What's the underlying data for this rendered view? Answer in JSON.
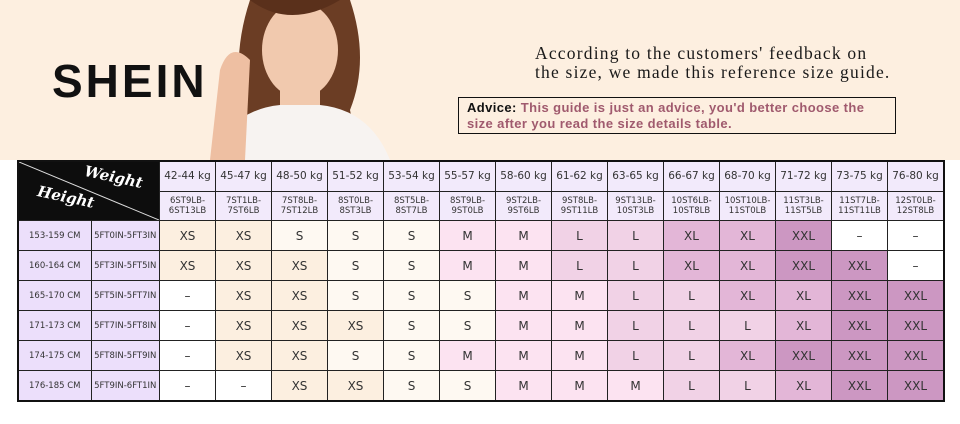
{
  "brand": "SHEIN",
  "intro": [
    "According to the customers' feedback on",
    "the size, we made this reference size guide."
  ],
  "advice": {
    "label": "Advice:",
    "text": "This guide is just an advice, you'd better choose the size after you read the size details table."
  },
  "table": {
    "corner": {
      "weight": "Weight",
      "height": "Height"
    },
    "weights_kg": [
      "42-44 kg",
      "45-47 kg",
      "48-50 kg",
      "51-52 kg",
      "53-54 kg",
      "55-57 kg",
      "58-60 kg",
      "61-62 kg",
      "63-65 kg",
      "66-67 kg",
      "68-70 kg",
      "71-72 kg",
      "73-75 kg",
      "76-80 kg"
    ],
    "weights_st": [
      "6ST9LB-6ST13LB",
      "7ST1LB-7ST6LB",
      "7ST8LB-7ST12LB",
      "8ST0LB-8ST3LB",
      "8ST5LB-8ST7LB",
      "8ST9LB-9ST0LB",
      "9ST2LB-9ST6LB",
      "9ST8LB-9ST11LB",
      "9ST13LB-10ST3LB",
      "10ST6LB-10ST8LB",
      "10ST10LB-11ST0LB",
      "11ST3LB-11ST5LB",
      "11ST7LB-11ST11LB",
      "12ST0LB-12ST8LB"
    ],
    "rows": [
      {
        "cm": "153-159 CM",
        "ft": "5FT0IN-5FT3IN",
        "sizes": [
          "XS",
          "XS",
          "S",
          "S",
          "S",
          "M",
          "M",
          "L",
          "L",
          "XL",
          "XL",
          "XXL",
          "–",
          "–"
        ]
      },
      {
        "cm": "160-164 CM",
        "ft": "5FT3IN-5FT5IN",
        "sizes": [
          "XS",
          "XS",
          "XS",
          "S",
          "S",
          "M",
          "M",
          "L",
          "L",
          "XL",
          "XL",
          "XXL",
          "XXL",
          "–"
        ]
      },
      {
        "cm": "165-170 CM",
        "ft": "5FT5IN-5FT7IN",
        "sizes": [
          "–",
          "XS",
          "XS",
          "S",
          "S",
          "S",
          "M",
          "M",
          "L",
          "L",
          "XL",
          "XL",
          "XXL",
          "XXL"
        ]
      },
      {
        "cm": "171-173 CM",
        "ft": "5FT7IN-5FT8IN",
        "sizes": [
          "–",
          "XS",
          "XS",
          "XS",
          "S",
          "S",
          "M",
          "M",
          "L",
          "L",
          "L",
          "XL",
          "XXL",
          "XXL"
        ]
      },
      {
        "cm": "174-175 CM",
        "ft": "5FT8IN-5FT9IN",
        "sizes": [
          "–",
          "XS",
          "XS",
          "S",
          "S",
          "M",
          "M",
          "M",
          "L",
          "L",
          "XL",
          "XXL",
          "XXL",
          "XXL"
        ]
      },
      {
        "cm": "176-185 CM",
        "ft": "5FT9IN-6FT1IN",
        "sizes": [
          "–",
          "–",
          "XS",
          "XS",
          "S",
          "S",
          "M",
          "M",
          "M",
          "L",
          "L",
          "XL",
          "XXL",
          "XXL"
        ]
      }
    ]
  },
  "size_colors": {
    "XS": "#fcefe0",
    "S": "#fef9f2",
    "M": "#fce3f1",
    "L": "#f1d2e6",
    "XL": "#e3b6d7",
    "XXL": "#cc97c2",
    "–": "#ffffff"
  }
}
